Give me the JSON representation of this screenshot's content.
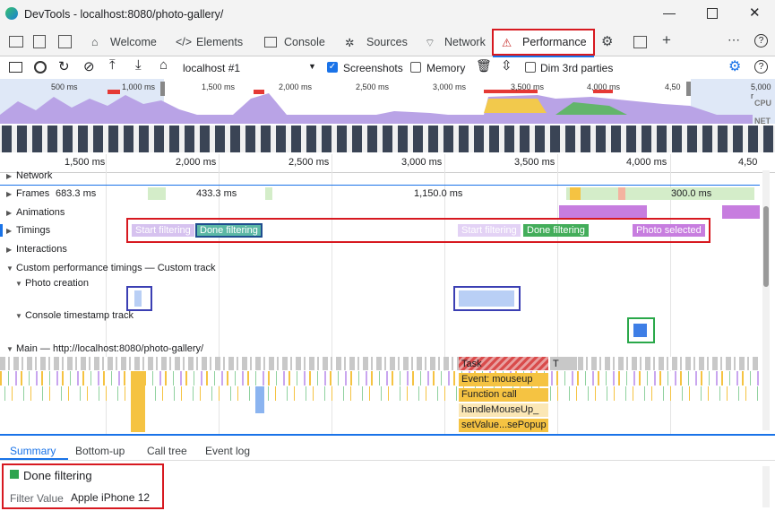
{
  "window": {
    "title": "DevTools - localhost:8080/photo-gallery/"
  },
  "tabs": [
    "Welcome",
    "Elements",
    "Console",
    "Sources",
    "Network",
    "Performance"
  ],
  "toolbar": {
    "target": "localhost #1",
    "screenshots": "Screenshots",
    "memory": "Memory",
    "dim": "Dim 3rd parties"
  },
  "overview": {
    "ticks": [
      "500 ms",
      "1,000 ms",
      "1,500 ms",
      "2,000 ms",
      "2,500 ms",
      "3,000 ms",
      "3,500 ms",
      "4,000 ms",
      "4,50",
      "5,000 r"
    ],
    "cpu": "CPU",
    "net": "NET"
  },
  "ruler": [
    "1,500 ms",
    "2,000 ms",
    "2,500 ms",
    "3,000 ms",
    "3,500 ms",
    "4,000 ms",
    "4,50"
  ],
  "tracks": {
    "network": "Network",
    "frames": {
      "name": "Frames",
      "durations": [
        "683.3 ms",
        "433.3 ms",
        "1,150.0 ms",
        "300.0 ms"
      ]
    },
    "animations": "Animations",
    "timings": {
      "name": "Timings",
      "markers": [
        "Start filtering",
        "Done filtering",
        "Start filtering",
        "Done filtering",
        "Photo selected"
      ]
    },
    "interactions": "Interactions",
    "custom": "Custom performance timings — Custom track",
    "photo_creation": "Photo creation",
    "console_timestamp": "Console timestamp track",
    "main": "Main — http://localhost:8080/photo-gallery/",
    "flame": [
      "Task",
      "T",
      "Event: mouseup",
      "Function call",
      "handleMouseUp_",
      "setValue...sePopup"
    ]
  },
  "bottom_tabs": [
    "Summary",
    "Bottom-up",
    "Call tree",
    "Event log"
  ],
  "summary": {
    "title": "Done filtering",
    "key": "Filter Value",
    "value": "Apple iPhone 12"
  }
}
